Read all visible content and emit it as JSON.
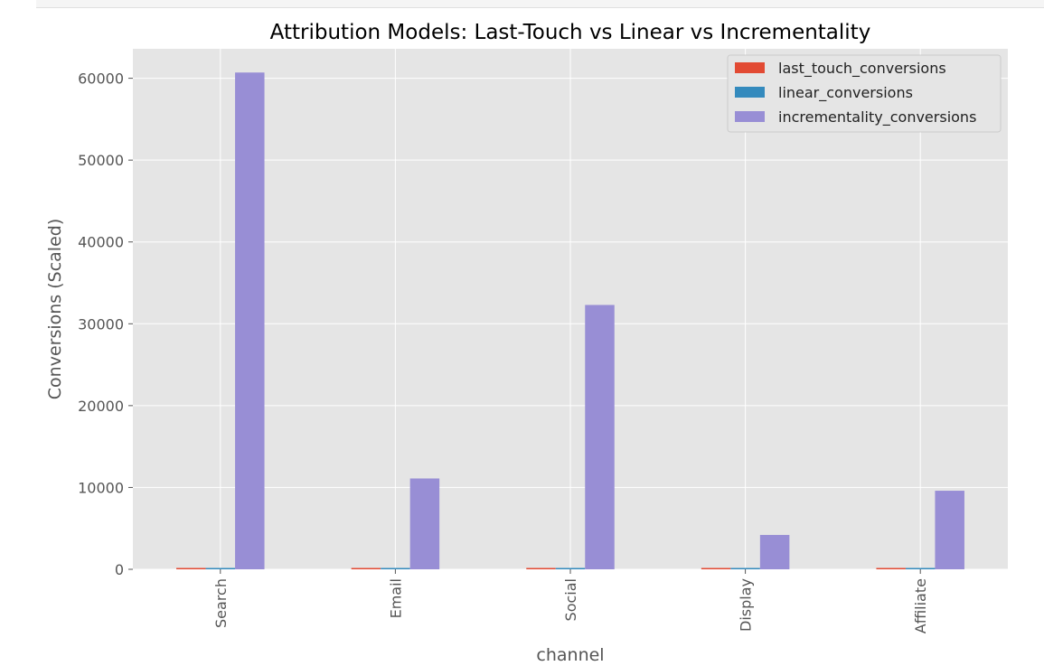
{
  "chart_data": {
    "type": "bar",
    "title": "Attribution Models: Last-Touch vs Linear vs Incrementality",
    "xlabel": "channel",
    "ylabel": "Conversions (Scaled)",
    "categories": [
      "Search",
      "Email",
      "Social",
      "Display",
      "Affiliate"
    ],
    "ylim": [
      0,
      63600
    ],
    "yticks": [
      0,
      10000,
      20000,
      30000,
      40000,
      50000,
      60000
    ],
    "grid": true,
    "legend_position": "top-right",
    "series": [
      {
        "name": "last_touch_conversions",
        "color": "#E24A33",
        "values": [
          120,
          110,
          115,
          100,
          105
        ]
      },
      {
        "name": "linear_conversions",
        "color": "#348ABD",
        "values": [
          115,
          105,
          110,
          95,
          100
        ]
      },
      {
        "name": "incrementality_conversions",
        "color": "#988ED5",
        "values": [
          60700,
          11100,
          32300,
          4200,
          9600
        ]
      }
    ]
  }
}
